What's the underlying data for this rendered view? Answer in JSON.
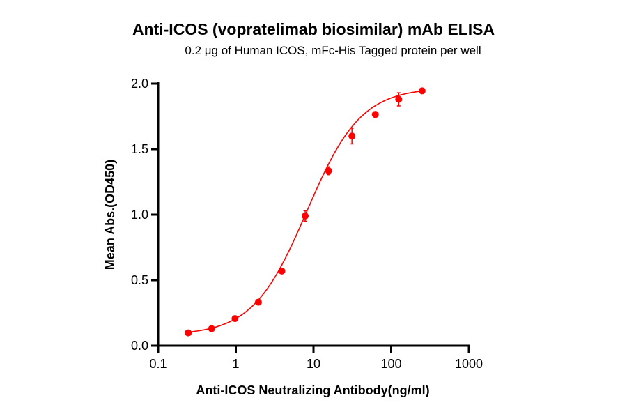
{
  "chart_data": {
    "type": "scatter",
    "title": "Anti-ICOS (vopratelimab biosimilar) mAb ELISA",
    "subtitle": "0.2 μg of Human ICOS, mFc-His Tagged protein per well",
    "xlabel": "Anti-ICOS Neutralizing Antibody(ng/ml)",
    "ylabel": "Mean Abs.(OD450)",
    "xscale": "log",
    "xlim": [
      0.1,
      1000
    ],
    "ylim": [
      0,
      2.0
    ],
    "xticks": [
      "0.1",
      "1",
      "10",
      "100",
      "1000"
    ],
    "yticks": [
      "0.0",
      "0.5",
      "1.0",
      "1.5",
      "2.0"
    ],
    "grid": false,
    "fit": "sigmoidal 4PL curve",
    "color": "#ff0000",
    "x": [
      0.244,
      0.488,
      0.977,
      1.953,
      3.906,
      7.813,
      15.625,
      31.25,
      62.5,
      125,
      250
    ],
    "y": [
      0.098,
      0.13,
      0.207,
      0.332,
      0.57,
      0.99,
      1.335,
      1.6,
      1.765,
      1.88,
      1.945
    ],
    "error": [
      0.01,
      0.01,
      0.01,
      0.02,
      0.015,
      0.04,
      0.03,
      0.06,
      0.02,
      0.05,
      0.01
    ]
  }
}
